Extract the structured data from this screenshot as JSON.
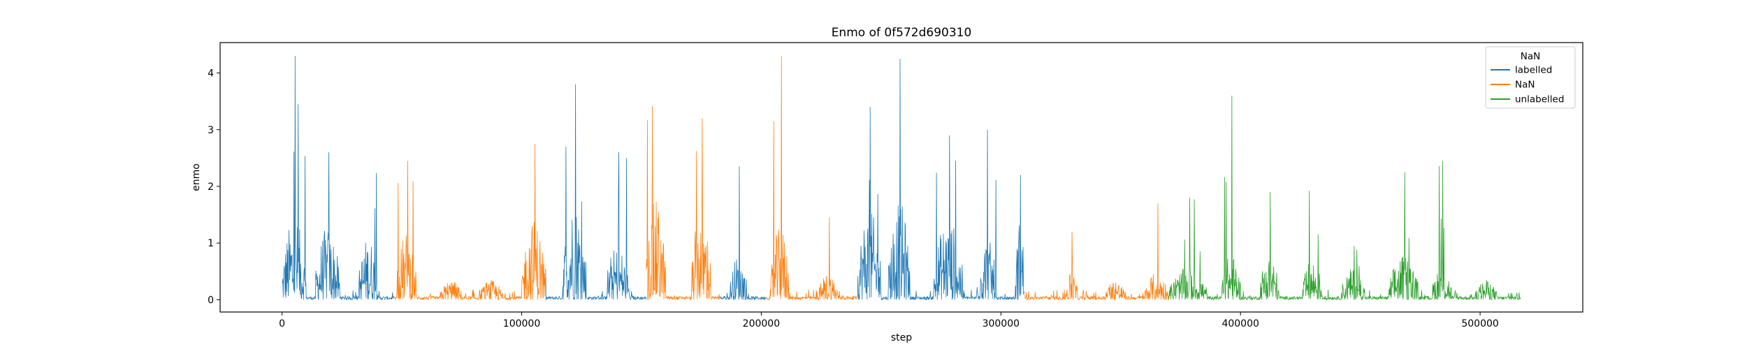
{
  "chart_data": {
    "type": "line",
    "title": "Enmo of 0f572d690310",
    "xlabel": "step",
    "ylabel": "enmo",
    "xlim": [
      -25850,
      542850
    ],
    "ylim": [
      -0.216,
      4.536
    ],
    "x_ticks": [
      0,
      100000,
      200000,
      300000,
      400000,
      500000
    ],
    "y_ticks": [
      0,
      1,
      2,
      3,
      4
    ],
    "grid": false,
    "legend": {
      "title": "NaN",
      "position": "upper right",
      "entries": [
        "labelled",
        "NaN",
        "unlabelled"
      ]
    },
    "series": [
      {
        "name": "labelled",
        "color": "#1f77b4",
        "segments": [
          [
            0,
            47000
          ],
          [
            110000,
            152000
          ],
          [
            183000,
            202000
          ],
          [
            240000,
            310000
          ]
        ]
      },
      {
        "name": "NaN",
        "color": "#ff7f0e",
        "segments": [
          [
            47000,
            110000
          ],
          [
            152000,
            183000
          ],
          [
            202000,
            240000
          ],
          [
            310000,
            370000
          ]
        ]
      },
      {
        "name": "unlabelled",
        "color": "#2ca02c",
        "segments": [
          [
            370000,
            517000
          ]
        ]
      }
    ],
    "baseline_noise": 0.06,
    "bursts": [
      [
        0,
        10000,
        0.9,
        4.3
      ],
      [
        14000,
        24000,
        0.8,
        2.6
      ],
      [
        32000,
        40000,
        0.7,
        2.45
      ],
      [
        48000,
        56000,
        0.75,
        2.45
      ],
      [
        66000,
        75000,
        0.22,
        0.3
      ],
      [
        82000,
        92000,
        0.22,
        0.3
      ],
      [
        100000,
        110000,
        0.9,
        2.75
      ],
      [
        117000,
        127000,
        1.1,
        3.8
      ],
      [
        135000,
        145000,
        0.6,
        2.6
      ],
      [
        152000,
        160000,
        1.1,
        3.9
      ],
      [
        171000,
        179000,
        1.0,
        3.2
      ],
      [
        187000,
        194000,
        0.5,
        2.35
      ],
      [
        204000,
        212000,
        0.8,
        4.3
      ],
      [
        224000,
        232000,
        0.3,
        1.45
      ],
      [
        240000,
        250000,
        1.0,
        3.4
      ],
      [
        253000,
        262000,
        1.1,
        4.25
      ],
      [
        272000,
        284000,
        0.9,
        2.9
      ],
      [
        290000,
        298000,
        0.7,
        3.0
      ],
      [
        306000,
        310000,
        0.9,
        2.2
      ],
      [
        327000,
        332000,
        0.3,
        1.2
      ],
      [
        343000,
        352000,
        0.22,
        0.3
      ],
      [
        360000,
        370000,
        0.3,
        1.7
      ],
      [
        370000,
        386000,
        0.35,
        1.8
      ],
      [
        392000,
        400000,
        0.5,
        3.6
      ],
      [
        408000,
        416000,
        0.5,
        1.9
      ],
      [
        426000,
        434000,
        0.45,
        2.0
      ],
      [
        442000,
        452000,
        0.35,
        0.95
      ],
      [
        462000,
        474000,
        0.5,
        2.25
      ],
      [
        480000,
        488000,
        0.4,
        2.45
      ],
      [
        498000,
        507000,
        0.22,
        0.3
      ]
    ]
  }
}
